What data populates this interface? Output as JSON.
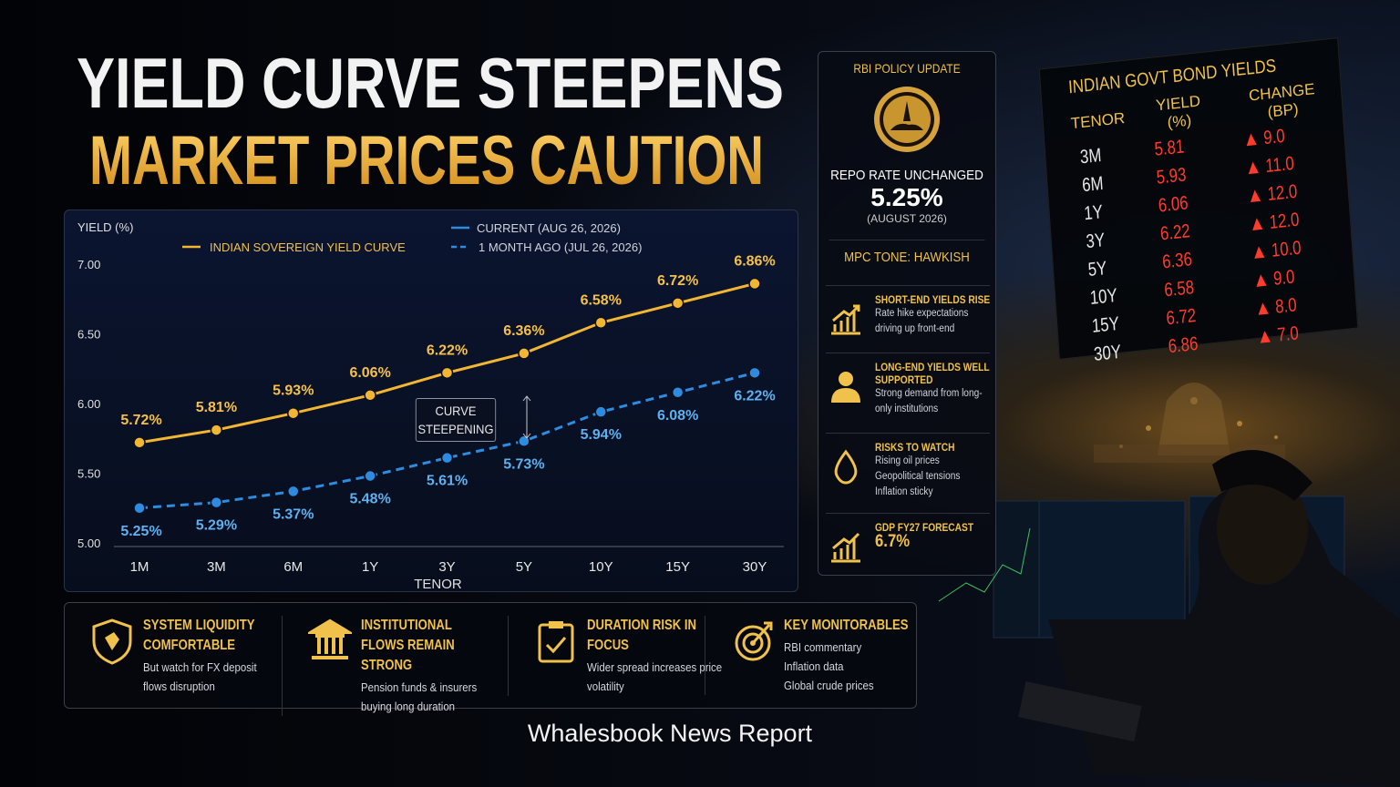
{
  "header": {
    "title_line1": "YIELD CURVE STEEPENS",
    "title_line2": "MARKET PRICES CAUTION"
  },
  "chart_data": {
    "type": "line",
    "y_label": "YIELD (%)",
    "x_label": "TENOR",
    "categories": [
      "1M",
      "3M",
      "6M",
      "1Y",
      "3Y",
      "5Y",
      "10Y",
      "15Y",
      "30Y"
    ],
    "series": [
      {
        "name": "INDIAN SOVEREIGN YIELD CURVE",
        "color": "#f3b633",
        "dashed": false,
        "values": [
          5.72,
          5.81,
          5.93,
          6.06,
          6.22,
          6.36,
          6.58,
          6.72,
          6.86
        ],
        "value_labels": [
          "5.72%",
          "5.81%",
          "5.93%",
          "6.06%",
          "6.22%",
          "6.36%",
          "6.58%",
          "6.72%",
          "6.86%"
        ]
      },
      {
        "name": "1 MONTH AGO (JUL 26, 2026)",
        "color": "#2e8ce0",
        "dashed": true,
        "values": [
          5.25,
          5.29,
          5.37,
          5.48,
          5.61,
          5.73,
          5.94,
          6.08,
          6.22
        ],
        "value_labels": [
          "5.25%",
          "5.29%",
          "5.37%",
          "5.48%",
          "5.61%",
          "5.73%",
          "5.94%",
          "6.08%",
          "6.22%"
        ]
      }
    ],
    "legend_note": "CURRENT (AUG 26, 2026)",
    "annotation": "CURVE STEEPENING",
    "ylim": [
      5.0,
      7.0
    ],
    "yticks": [
      {
        "value": 5.0,
        "label": "5.00"
      },
      {
        "value": 5.5,
        "label": "5.50"
      },
      {
        "value": 6.0,
        "label": "6.00"
      },
      {
        "value": 6.5,
        "label": "6.50"
      },
      {
        "value": 7.0,
        "label": "7.00"
      }
    ],
    "grid": false
  },
  "rbi_panel": {
    "title": "RBI POLICY UPDATE",
    "repo_label": "REPO RATE UNCHANGED",
    "repo_rate": "5.25%",
    "repo_date": "(AUGUST 2026)",
    "tone": "MPC TONE: HAWKISH",
    "items": [
      {
        "title": "SHORT-END YIELDS RISE",
        "text": "Rate hike expectations driving up front-end"
      },
      {
        "title": "LONG-END YIELDS WELL SUPPORTED",
        "text": "Strong demand from long-only institutions"
      },
      {
        "title": "RISKS TO WATCH",
        "lines": [
          "Rising oil prices",
          "Geopolitical tensions",
          "Inflation sticky"
        ]
      },
      {
        "title": "GDP FY27 FORECAST",
        "text": "6.7%"
      }
    ]
  },
  "board": {
    "title": "INDIAN GOVT BOND YIELDS",
    "headers": [
      "TENOR",
      "YIELD (%)",
      "CHANGE (BP)"
    ],
    "rows": [
      [
        "3M",
        "5.81",
        "9.0"
      ],
      [
        "6M",
        "5.93",
        "11.0"
      ],
      [
        "1Y",
        "6.06",
        "12.0"
      ],
      [
        "3Y",
        "6.22",
        "12.0"
      ],
      [
        "5Y",
        "6.36",
        "10.0"
      ],
      [
        "10Y",
        "6.58",
        "9.0"
      ],
      [
        "15Y",
        "6.72",
        "8.0"
      ],
      [
        "30Y",
        "6.86",
        "7.0"
      ]
    ]
  },
  "bottom": [
    {
      "title": "SYSTEM LIQUIDITY COMFORTABLE",
      "text": "But watch for FX deposit flows disruption"
    },
    {
      "title": "INSTITUTIONAL FLOWS REMAIN STRONG",
      "text": "Pension funds & insurers buying long duration"
    },
    {
      "title": "DURATION RISK IN FOCUS",
      "text": "Wider spread increases price volatility"
    },
    {
      "title": "KEY MONITORABLES",
      "lines": [
        "RBI commentary",
        "Inflation data",
        "Global crude prices"
      ]
    }
  ],
  "footer": "Whalesbook News Report"
}
